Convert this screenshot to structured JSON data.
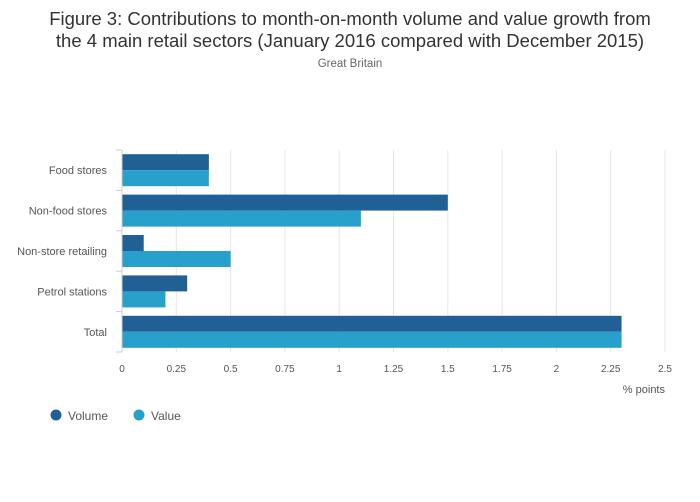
{
  "header": {
    "title_line1": "Figure 3: Contributions to month-on-month volume and value growth from",
    "title_line2": "the 4 main retail sectors (January 2016 compared with December 2015)",
    "subtitle": "Great Britain"
  },
  "colors": {
    "volume": "#206095",
    "value": "#27a0cc",
    "grid": "#e6e6e6",
    "axis": "#cccccc"
  },
  "chart_data": {
    "type": "bar",
    "orientation": "horizontal",
    "title": "Figure 3: Contributions to month-on-month volume and value growth from the 4 main retail sectors (January 2016 compared with December 2015)",
    "subtitle": "Great Britain",
    "categories": [
      "Food stores",
      "Non-food stores",
      "Non-store retailing",
      "Petrol stations",
      "Total"
    ],
    "series": [
      {
        "name": "Volume",
        "values": [
          0.4,
          1.5,
          0.1,
          0.3,
          2.3
        ]
      },
      {
        "name": "Value",
        "values": [
          0.4,
          1.1,
          0.5,
          0.2,
          2.3
        ]
      }
    ],
    "xlabel": "% points",
    "ylabel": "",
    "xlim": [
      0,
      2.5
    ],
    "ticks": [
      "0",
      "0.25",
      "0.5",
      "0.75",
      "1",
      "1.25",
      "1.5",
      "1.75",
      "2",
      "2.25",
      "2.5"
    ],
    "grid": true,
    "legend": "bottom-left"
  }
}
